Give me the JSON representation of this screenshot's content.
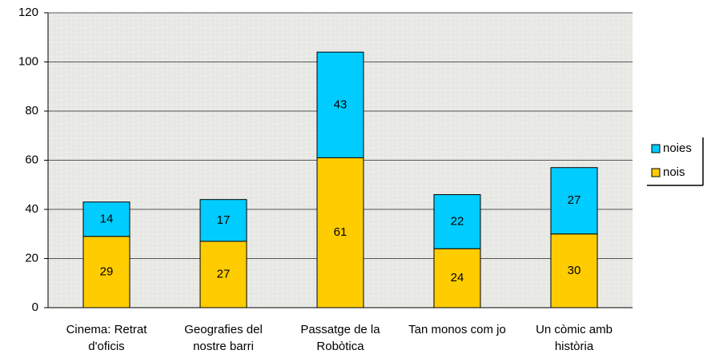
{
  "chart_data": {
    "type": "stacked_bar",
    "categories": [
      "Cinema: Retrat d'oficis",
      "Geografies del nostre barri",
      "Passatge de la Robòtica",
      "Tan monos com jo",
      "Un còmic amb història"
    ],
    "series": [
      {
        "name": "nois",
        "color": "#ffcc00",
        "values": [
          29,
          27,
          61,
          24,
          30
        ]
      },
      {
        "name": "noies",
        "color": "#00ccff",
        "values": [
          14,
          17,
          43,
          22,
          27
        ]
      }
    ],
    "ylim": [
      0,
      120
    ],
    "yticks": [
      0,
      20,
      40,
      60,
      80,
      100,
      120
    ],
    "grid": true,
    "legend": "right"
  }
}
